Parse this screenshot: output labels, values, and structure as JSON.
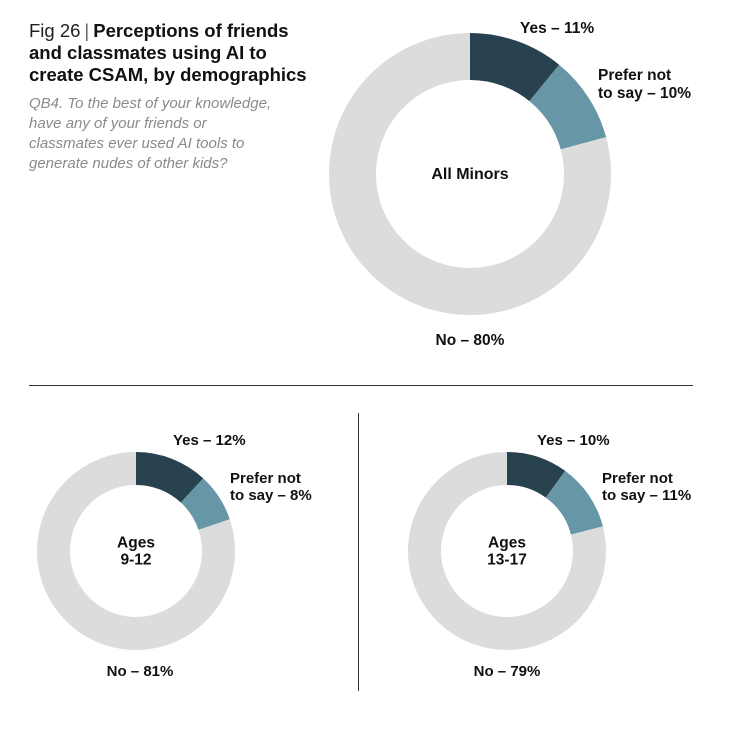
{
  "figure": {
    "number": "Fig 26",
    "separator": "|",
    "title": "Perceptions of friends and classmates using AI to create CSAM, by demographics",
    "question": "QB4. To the best of your knowledge, have any of your friends or classmates ever used AI tools to generate nudes of other kids?"
  },
  "colors": {
    "yes": "#27414f",
    "prefer_not_to_say": "#6796a6",
    "no": "#dcdcdc",
    "divider": "#333333"
  },
  "chart_data": [
    {
      "type": "pie",
      "style": "donut",
      "center_label": [
        "All Minors"
      ],
      "slices": [
        {
          "label": "Yes",
          "value": 11,
          "value_label": "11%",
          "label_lines": [
            "Yes – 11%"
          ]
        },
        {
          "label": "Prefer not to say",
          "value": 10,
          "value_label": "10%",
          "label_lines": [
            "Prefer not",
            "to say – 10%"
          ]
        },
        {
          "label": "No",
          "value": 80,
          "value_label": "80%",
          "label_lines": [
            "No – 80%"
          ]
        }
      ]
    },
    {
      "type": "pie",
      "style": "donut",
      "center_label": [
        "Ages",
        "9-12"
      ],
      "slices": [
        {
          "label": "Yes",
          "value": 12,
          "value_label": "12%",
          "label_lines": [
            "Yes – 12%"
          ]
        },
        {
          "label": "Prefer not to say",
          "value": 8,
          "value_label": "8%",
          "label_lines": [
            "Prefer not",
            "to say – 8%"
          ]
        },
        {
          "label": "No",
          "value": 81,
          "value_label": "81%",
          "label_lines": [
            "No – 81%"
          ]
        }
      ]
    },
    {
      "type": "pie",
      "style": "donut",
      "center_label": [
        "Ages",
        "13-17"
      ],
      "slices": [
        {
          "label": "Yes",
          "value": 10,
          "value_label": "10%",
          "label_lines": [
            "Yes – 10%"
          ]
        },
        {
          "label": "Prefer not to say",
          "value": 11,
          "value_label": "11%",
          "label_lines": [
            "Prefer not",
            "to say – 11%"
          ]
        },
        {
          "label": "No",
          "value": 79,
          "value_label": "79%",
          "label_lines": [
            "No – 79%"
          ]
        }
      ]
    }
  ]
}
